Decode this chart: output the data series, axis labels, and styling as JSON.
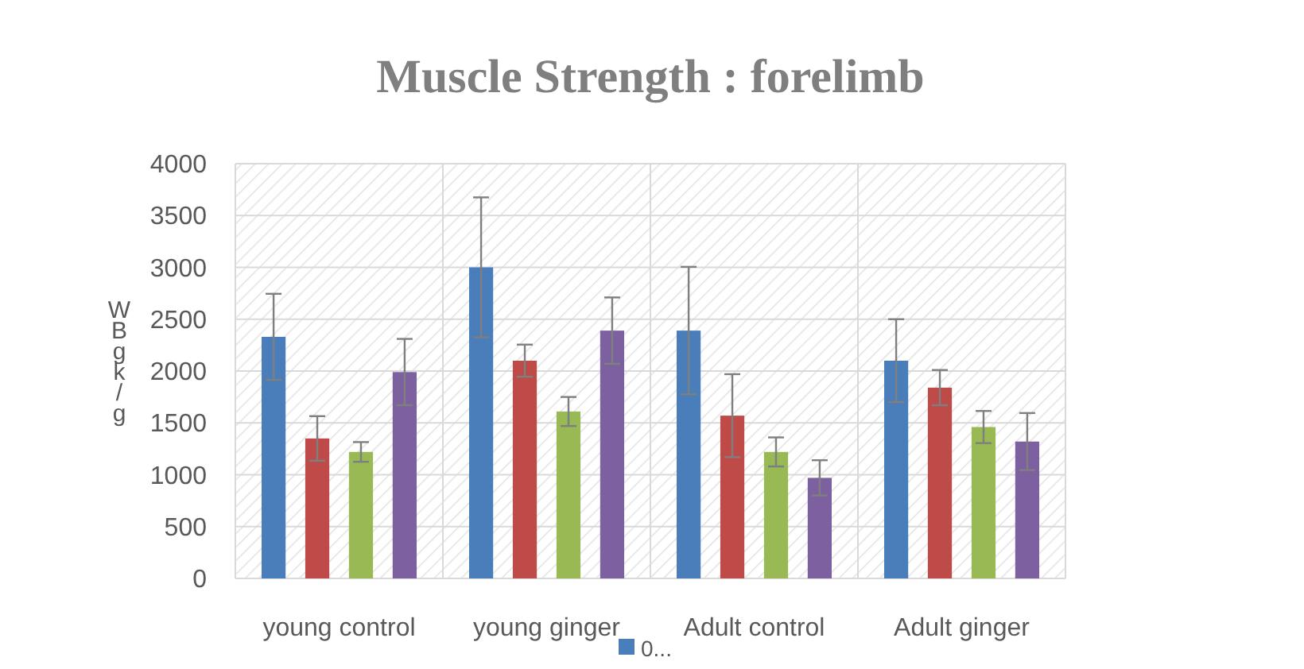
{
  "chart_data": {
    "type": "bar",
    "title": "Muscle Strength : forelimb",
    "ylabel": "WBgk/g",
    "categories": [
      "young control",
      "young ginger",
      "Adult control",
      "Adult ginger"
    ],
    "series": [
      {
        "name": "0...",
        "color": "#4a7ebb",
        "values": [
          2330,
          3000,
          2390,
          2100
        ],
        "errors": [
          415,
          675,
          615,
          400
        ]
      },
      {
        "color": "#be4b48",
        "values": [
          1350,
          2100,
          1570,
          1840
        ],
        "errors": [
          215,
          155,
          400,
          170
        ]
      },
      {
        "color": "#98b954",
        "values": [
          1220,
          1610,
          1220,
          1460
        ],
        "errors": [
          95,
          140,
          140,
          155
        ]
      },
      {
        "color": "#7d60a0",
        "values": [
          1990,
          2390,
          970,
          1320
        ],
        "errors": [
          320,
          320,
          170,
          275
        ]
      }
    ],
    "ylim": [
      0,
      4000
    ],
    "yticks": [
      0,
      500,
      1000,
      1500,
      2000,
      2500,
      3000,
      3500,
      4000
    ],
    "grid": true,
    "legend": "bottom"
  }
}
